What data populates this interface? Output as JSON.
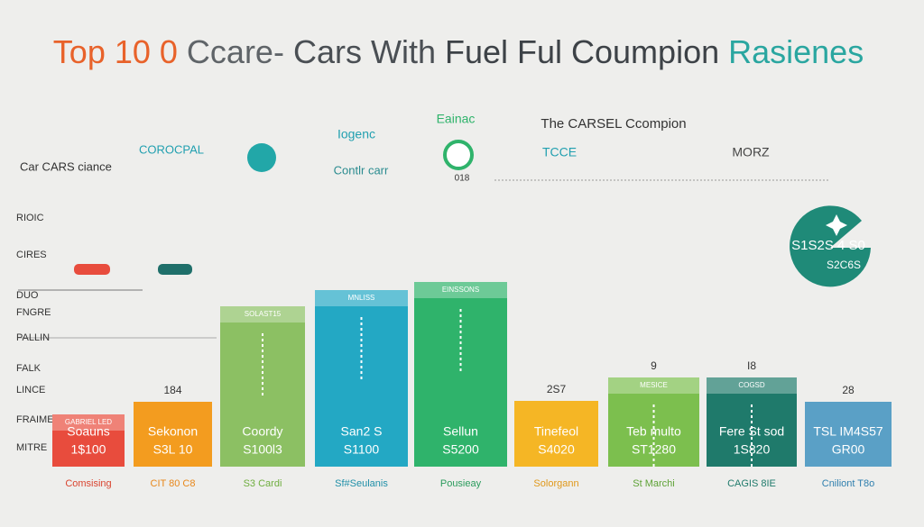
{
  "title": {
    "parts": [
      {
        "text": "Top 10 0",
        "color": "#e8622a"
      },
      {
        "text": "Ccare-",
        "color": "#5f6468"
      },
      {
        "text": "Cars With",
        "color": "#4a4f54"
      },
      {
        "text": "Fuel Ful Coumpion",
        "color": "#3d4247"
      },
      {
        "text": "Rasienes",
        "color": "#2aa6a0"
      }
    ]
  },
  "left": {
    "heading": "Car CARS ciance",
    "rows": [
      "RIOIC",
      "CIRES",
      "DUO",
      "FNGRE",
      "PALLIN",
      "FALK",
      "LINCE",
      "FRAIME",
      "MITRE"
    ]
  },
  "callouts": {
    "a": "COROCPAL",
    "b": "Iogenc",
    "c": "Contlr carr",
    "d": "Eainac",
    "e": "018",
    "f": "The CARSEL Ccompion",
    "g": "TCCE",
    "h": "MORZ"
  },
  "badge": {
    "line1": "S1S2S 4 S0",
    "line2": "S2C6S"
  },
  "bars": [
    {
      "top": "",
      "header": "GABRIEL LED",
      "name": "Soauns",
      "price": "1$100",
      "label": "Comsising",
      "color": "#e84c3d",
      "labelColor": "#d9442f"
    },
    {
      "top": "184",
      "header": "",
      "name": "Sekonon",
      "price": "S3L 10",
      "label": "CIT 80 C8",
      "color": "#f39c1f",
      "labelColor": "#e8871a"
    },
    {
      "top": "",
      "header": "SOLAST15",
      "name": "Coordy",
      "price": "S100l3",
      "label": "S3 Cardi",
      "color": "#8cc063",
      "labelColor": "#6fae3f"
    },
    {
      "top": "",
      "header": "MNLISS",
      "name": "San2 S",
      "price": "S1100",
      "label": "Sf#Seulanis",
      "color": "#23a8c4",
      "labelColor": "#1f8fa8"
    },
    {
      "top": "",
      "header": "EINSSONS",
      "name": "Sellun",
      "price": "S5200",
      "label": "Pousieay",
      "color": "#2fb36b",
      "labelColor": "#2a9b5c"
    },
    {
      "top": "2S7",
      "header": "",
      "name": "Tinefeol",
      "price": "S4020",
      "label": "Solorgann",
      "color": "#f5b625",
      "labelColor": "#e0981a"
    },
    {
      "top": "9",
      "header": "MESICE",
      "name": "Teb multo",
      "price": "ST1280",
      "label": "St Marchi",
      "color": "#7cbf4e",
      "labelColor": "#5ea236"
    },
    {
      "top": "I8",
      "header": "COGSD",
      "name": "Fere St sod",
      "price": "1S820",
      "label": "CAGIS 8IE",
      "color": "#1f7a6b",
      "labelColor": "#1f7a6b"
    },
    {
      "top": "28",
      "header": "",
      "name": "TSL IM4S57",
      "price": "GR00",
      "label": "Cniliont T8o",
      "color": "#5aa0c6",
      "labelColor": "#2f7fae"
    }
  ]
}
